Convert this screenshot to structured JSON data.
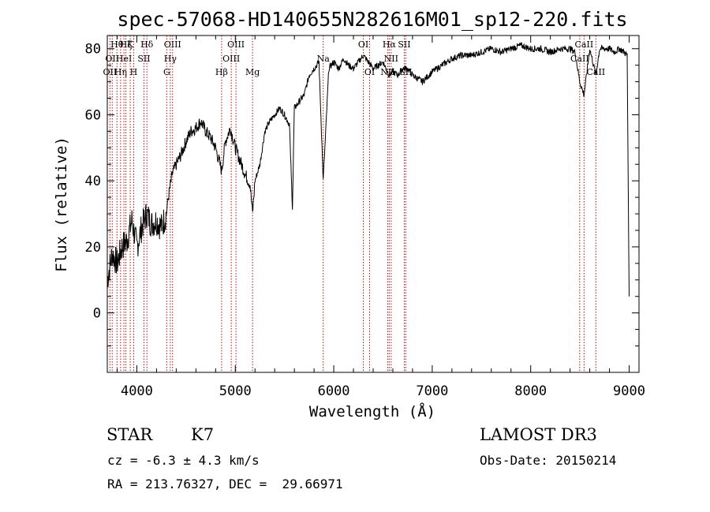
{
  "chart_data": {
    "type": "line",
    "title": "spec-57068-HD140655N282616M01_sp12-220.fits",
    "xlabel": "Wavelength (Å)",
    "ylabel": "Flux (relative)",
    "xlim": [
      3700,
      9100
    ],
    "ylim": [
      -18,
      84
    ],
    "xticks": [
      4000,
      5000,
      6000,
      7000,
      8000,
      9000
    ],
    "yticks": [
      0,
      20,
      40,
      60,
      80
    ],
    "series": [
      {
        "name": "flux",
        "x": [
          3700,
          3750,
          3800,
          3850,
          3900,
          3950,
          4000,
          4050,
          4100,
          4150,
          4200,
          4250,
          4300,
          4320,
          4360,
          4400,
          4450,
          4500,
          4550,
          4600,
          4650,
          4700,
          4750,
          4800,
          4861,
          4900,
          4950,
          5000,
          5050,
          5100,
          5150,
          5175,
          5200,
          5250,
          5300,
          5350,
          5400,
          5450,
          5500,
          5550,
          5580,
          5600,
          5650,
          5700,
          5750,
          5800,
          5850,
          5893,
          5950,
          6000,
          6050,
          6100,
          6150,
          6200,
          6250,
          6300,
          6350,
          6400,
          6450,
          6500,
          6563,
          6600,
          6650,
          6700,
          6750,
          6800,
          6850,
          6900,
          7000,
          7100,
          7200,
          7300,
          7400,
          7500,
          7600,
          7700,
          7800,
          7900,
          8000,
          8100,
          8200,
          8300,
          8400,
          8450,
          8498,
          8542,
          8600,
          8662,
          8700,
          8800,
          8850,
          8900,
          8950,
          8980,
          9000
        ],
        "y": [
          10,
          18,
          15,
          20,
          22,
          28,
          20,
          26,
          30,
          27,
          28,
          26,
          30,
          35,
          42,
          45,
          48,
          52,
          55,
          56,
          58,
          55,
          53,
          50,
          43,
          52,
          56,
          50,
          46,
          42,
          39,
          30,
          40,
          45,
          55,
          58,
          60,
          62,
          60,
          57,
          32,
          62,
          64,
          66,
          72,
          74,
          76,
          40,
          74,
          76,
          74,
          77,
          75,
          74,
          76,
          78,
          76,
          74,
          75,
          76,
          72,
          73,
          72,
          74,
          74,
          72,
          71,
          70,
          73,
          75,
          77,
          78,
          78,
          79,
          80,
          79,
          80,
          81,
          80,
          80,
          79,
          80,
          80,
          79,
          70,
          66,
          80,
          72,
          80,
          80,
          79,
          80,
          79,
          78,
          5
        ]
      }
    ],
    "lines": [
      {
        "wl": 3727,
        "label": "OII",
        "row": 2
      },
      {
        "wl": 3750,
        "label": "OII",
        "row": 1
      },
      {
        "wl": 3798,
        "label": "Hθ",
        "row": 0
      },
      {
        "wl": 3835,
        "label": "Hη",
        "row": 2
      },
      {
        "wl": 3869,
        "label": "HeI",
        "row": 1
      },
      {
        "wl": 3889,
        "label": "Hζ",
        "row": 0
      },
      {
        "wl": 3933,
        "label": "K",
        "row": 0
      },
      {
        "wl": 3968,
        "label": "H",
        "row": 2
      },
      {
        "wl": 4072,
        "label": "SII",
        "row": 1
      },
      {
        "wl": 4102,
        "label": "Hδ",
        "row": 0
      },
      {
        "wl": 4304,
        "label": "G",
        "row": 2
      },
      {
        "wl": 4340,
        "label": "Hγ",
        "row": 1
      },
      {
        "wl": 4363,
        "label": "OIII",
        "row": 0
      },
      {
        "wl": 4861,
        "label": "Hβ",
        "row": 2
      },
      {
        "wl": 4959,
        "label": "OIII",
        "row": 1
      },
      {
        "wl": 5007,
        "label": "OIII",
        "row": 0
      },
      {
        "wl": 5175,
        "label": "Mg",
        "row": 2
      },
      {
        "wl": 5893,
        "label": "Na",
        "row": 1
      },
      {
        "wl": 6300,
        "label": "OI",
        "row": 0
      },
      {
        "wl": 6364,
        "label": "OI",
        "row": 2
      },
      {
        "wl": 6548,
        "label": "NII",
        "row": 2
      },
      {
        "wl": 6563,
        "label": "Hα",
        "row": 0
      },
      {
        "wl": 6583,
        "label": "NII",
        "row": 1
      },
      {
        "wl": 6716,
        "label": "SII",
        "row": 0
      },
      {
        "wl": 6731,
        "label": "SII",
        "row": 2
      },
      {
        "wl": 8498,
        "label": "CaII",
        "row": 1
      },
      {
        "wl": 8542,
        "label": "CaII",
        "row": 0
      },
      {
        "wl": 8662,
        "label": "CaII",
        "row": 2
      }
    ]
  },
  "info": {
    "object_class": "STAR",
    "subclass": "K7",
    "survey": "LAMOST DR3",
    "redshift": "cz = -6.3 ± 4.3 km/s",
    "obs_date": "Obs-Date: 20150214",
    "coords": "RA = 213.76327, DEC =  29.66971"
  }
}
